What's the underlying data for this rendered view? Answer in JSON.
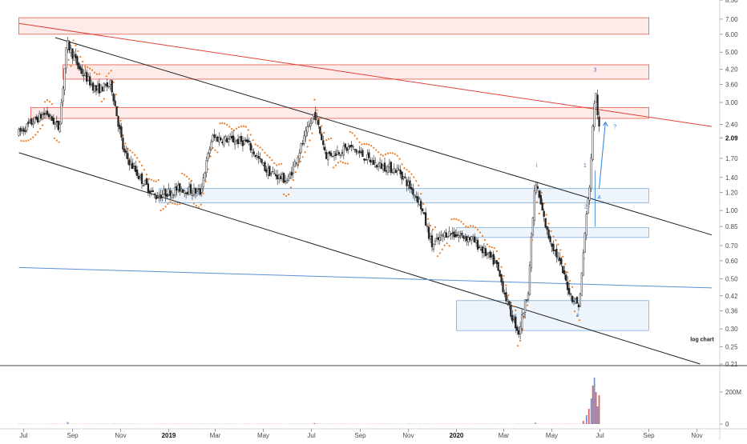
{
  "chart_data": {
    "type": "candlestick",
    "scale": "log",
    "annotation": "log chart",
    "x_tick_labels": [
      "Jul",
      "Sep",
      "Nov",
      "2019",
      "Mar",
      "May",
      "Jul",
      "Sep",
      "Nov",
      "2020",
      "Mar",
      "May",
      "Jul",
      "Sep",
      "Nov"
    ],
    "y_tick_labels": [
      "8.50",
      "7.00",
      "6.00",
      "5.00",
      "4.20",
      "3.60",
      "3.00",
      "2.40",
      "2.09",
      "1.70",
      "1.40",
      "1.20",
      "1.00",
      "0.85",
      "0.70",
      "0.60",
      "0.50",
      "0.42",
      "0.36",
      "0.30",
      "0.25",
      "0.21"
    ],
    "y_ticks": [
      8.5,
      7.0,
      6.0,
      5.0,
      4.2,
      3.6,
      3.0,
      2.4,
      2.09,
      1.7,
      1.4,
      1.2,
      1.0,
      0.85,
      0.7,
      0.6,
      0.5,
      0.42,
      0.36,
      0.3,
      0.25,
      0.21
    ],
    "current_price": "2.09",
    "ylim": [
      0.21,
      8.5
    ],
    "price_path": [
      {
        "date": "2018-06-25",
        "price": 2.2
      },
      {
        "date": "2018-07-15",
        "price": 2.5
      },
      {
        "date": "2018-07-30",
        "price": 2.7
      },
      {
        "date": "2018-08-15",
        "price": 2.3
      },
      {
        "date": "2018-08-25",
        "price": 5.5
      },
      {
        "date": "2018-09-10",
        "price": 4.2
      },
      {
        "date": "2018-10-01",
        "price": 3.4
      },
      {
        "date": "2018-10-20",
        "price": 3.6
      },
      {
        "date": "2018-11-05",
        "price": 1.8
      },
      {
        "date": "2018-11-25",
        "price": 1.4
      },
      {
        "date": "2018-12-15",
        "price": 1.15
      },
      {
        "date": "2019-01-15",
        "price": 1.25
      },
      {
        "date": "2019-02-10",
        "price": 1.2
      },
      {
        "date": "2019-02-25",
        "price": 2.1
      },
      {
        "date": "2019-04-10",
        "price": 2.0
      },
      {
        "date": "2019-05-05",
        "price": 1.5
      },
      {
        "date": "2019-06-01",
        "price": 1.35
      },
      {
        "date": "2019-06-25",
        "price": 2.2
      },
      {
        "date": "2019-07-05",
        "price": 2.7
      },
      {
        "date": "2019-07-20",
        "price": 1.75
      },
      {
        "date": "2019-08-20",
        "price": 1.9
      },
      {
        "date": "2019-09-20",
        "price": 1.6
      },
      {
        "date": "2019-10-20",
        "price": 1.5
      },
      {
        "date": "2019-11-15",
        "price": 1.1
      },
      {
        "date": "2019-12-01",
        "price": 0.7
      },
      {
        "date": "2019-12-20",
        "price": 0.8
      },
      {
        "date": "2020-01-20",
        "price": 0.75
      },
      {
        "date": "2020-02-20",
        "price": 0.58
      },
      {
        "date": "2020-03-10",
        "price": 0.35
      },
      {
        "date": "2020-03-20",
        "price": 0.29
      },
      {
        "date": "2020-04-01",
        "price": 0.45
      },
      {
        "date": "2020-04-10",
        "price": 1.35
      },
      {
        "date": "2020-04-25",
        "price": 0.8
      },
      {
        "date": "2020-05-10",
        "price": 0.6
      },
      {
        "date": "2020-05-25",
        "price": 0.42
      },
      {
        "date": "2020-06-05",
        "price": 0.38
      },
      {
        "date": "2020-06-12",
        "price": 0.8
      },
      {
        "date": "2020-06-18",
        "price": 1.3
      },
      {
        "date": "2020-06-25",
        "price": 3.5
      },
      {
        "date": "2020-07-01",
        "price": 2.09
      }
    ],
    "supply_zones": [
      {
        "start": "2018-06-25",
        "end": "2020-09-01",
        "low": 6.0,
        "high": 7.1
      },
      {
        "start": "2018-08-20",
        "end": "2020-09-01",
        "low": 3.8,
        "high": 4.4
      },
      {
        "start": "2018-07-10",
        "end": "2020-09-01",
        "low": 2.55,
        "high": 2.85
      }
    ],
    "demand_zones": [
      {
        "start": "2018-12-20",
        "end": "2020-09-01",
        "low": 1.08,
        "high": 1.25
      },
      {
        "start": "2020-01-01",
        "end": "2020-09-01",
        "low": 0.76,
        "high": 0.84
      },
      {
        "start": "2020-01-01",
        "end": "2020-09-01",
        "low": 0.295,
        "high": 0.4
      }
    ],
    "trend_lines": [
      {
        "color": "#e0413a",
        "from": {
          "date": "2018-06-25",
          "price": 6.7
        },
        "to": {
          "date": "2020-11-20",
          "price": 2.35
        }
      },
      {
        "color": "#222222",
        "from": {
          "date": "2018-08-10",
          "price": 5.8
        },
        "to": {
          "date": "2020-11-20",
          "price": 0.78
        }
      },
      {
        "color": "#222222",
        "from": {
          "date": "2018-06-25",
          "price": 1.8
        },
        "to": {
          "date": "2020-11-05",
          "price": 0.21
        }
      },
      {
        "color": "#5b8fd9",
        "from": {
          "date": "2018-06-25",
          "price": 0.56
        },
        "to": {
          "date": "2020-11-20",
          "price": 0.455
        }
      }
    ],
    "wave_labels": [
      {
        "text": "i",
        "date": "2020-04-12",
        "price": 1.55
      },
      {
        "text": "ii",
        "date": "2020-06-03",
        "price": 0.34
      },
      {
        "text": "1",
        "date": "2020-06-12",
        "price": 1.55
      },
      {
        "text": "2",
        "date": "2020-06-13",
        "price": 1.02
      },
      {
        "text": "3",
        "date": "2020-06-25",
        "price": 4.1
      },
      {
        "text": "4",
        "date": "2020-06-30",
        "price": 1.12
      },
      {
        "text": "?",
        "date": "2020-07-20",
        "price": 2.3
      }
    ],
    "volume_axis": {
      "labels": [
        "200M",
        "0"
      ],
      "values": [
        200,
        0
      ],
      "ylim": [
        0,
        320
      ]
    },
    "volume": [
      {
        "date": "2018-08-26",
        "value": 12
      },
      {
        "date": "2019-07-05",
        "value": 6
      },
      {
        "date": "2020-04-10",
        "value": 8
      },
      {
        "date": "2020-06-10",
        "value": 20
      },
      {
        "date": "2020-06-14",
        "value": 55
      },
      {
        "date": "2020-06-17",
        "value": 95
      },
      {
        "date": "2020-06-20",
        "value": 160
      },
      {
        "date": "2020-06-22",
        "value": 240
      },
      {
        "date": "2020-06-24",
        "value": 290
      },
      {
        "date": "2020-06-26",
        "value": 200
      },
      {
        "date": "2020-06-28",
        "value": 110
      },
      {
        "date": "2020-06-30",
        "value": 180
      }
    ],
    "colors": {
      "supply": "#e8574a",
      "demand": "#7faee0",
      "parabolic": "#f07b22",
      "projection": "#2f7fd8"
    }
  }
}
